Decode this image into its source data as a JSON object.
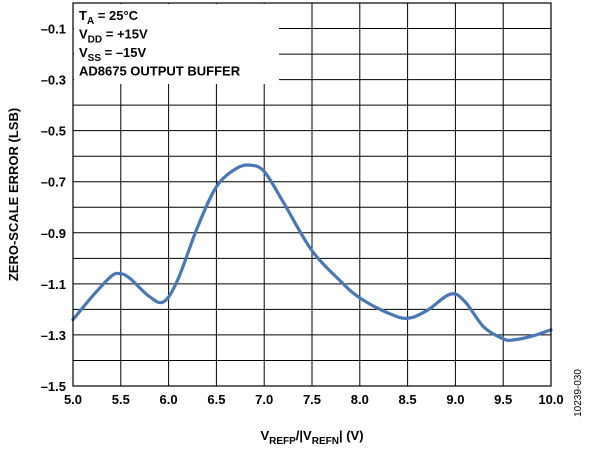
{
  "chart_data": {
    "type": "line",
    "title": "",
    "xlabel": {
      "base": "V",
      "sub1": "REFP",
      "mid": "/|V",
      "sub2": "REFN",
      "tail": "| (V)"
    },
    "ylabel": "ZERO-SCALE ERROR (LSB)",
    "xlim": [
      5.0,
      10.0
    ],
    "ylim": [
      -1.5,
      0
    ],
    "x_ticks": [
      "5.0",
      "5.5",
      "6.0",
      "6.5",
      "7.0",
      "7.5",
      "8.0",
      "8.5",
      "9.0",
      "9.5",
      "10.0"
    ],
    "x_tick_values": [
      5.0,
      5.5,
      6.0,
      6.5,
      7.0,
      7.5,
      8.0,
      8.5,
      9.0,
      9.5,
      10.0
    ],
    "y_ticks": [
      "–0.1",
      "–0.3",
      "–0.5",
      "–0.7",
      "–0.9",
      "–1.1",
      "–1.3",
      "–1.5"
    ],
    "y_tick_values": [
      -0.1,
      -0.3,
      -0.5,
      -0.7,
      -0.9,
      -1.1,
      -1.3,
      -1.5
    ],
    "grid": true,
    "line_color": "#4a78b4",
    "series": [
      {
        "x": [
          5.0,
          5.2,
          5.4,
          5.5,
          5.6,
          5.8,
          5.95,
          6.1,
          6.3,
          6.5,
          6.7,
          6.85,
          7.0,
          7.2,
          7.5,
          7.8,
          8.0,
          8.3,
          8.5,
          8.7,
          8.95,
          9.1,
          9.3,
          9.5,
          9.6,
          9.8,
          10.0
        ],
        "y": [
          -1.24,
          -1.15,
          -1.07,
          -1.06,
          -1.08,
          -1.15,
          -1.17,
          -1.08,
          -0.88,
          -0.72,
          -0.65,
          -0.635,
          -0.66,
          -0.78,
          -0.97,
          -1.09,
          -1.155,
          -1.215,
          -1.235,
          -1.205,
          -1.14,
          -1.17,
          -1.27,
          -1.315,
          -1.32,
          -1.305,
          -1.28
        ]
      }
    ],
    "annotations": [
      {
        "base": "T",
        "sub": "A",
        "rest": " = 25°C"
      },
      {
        "base": "V",
        "sub": "DD",
        "rest": " = +15V"
      },
      {
        "base": "V",
        "sub": "SS",
        "rest": " = –15V"
      },
      {
        "base": "AD8675 OUTPUT BUFFER",
        "sub": "",
        "rest": ""
      }
    ],
    "figure_id": "10239-030"
  }
}
